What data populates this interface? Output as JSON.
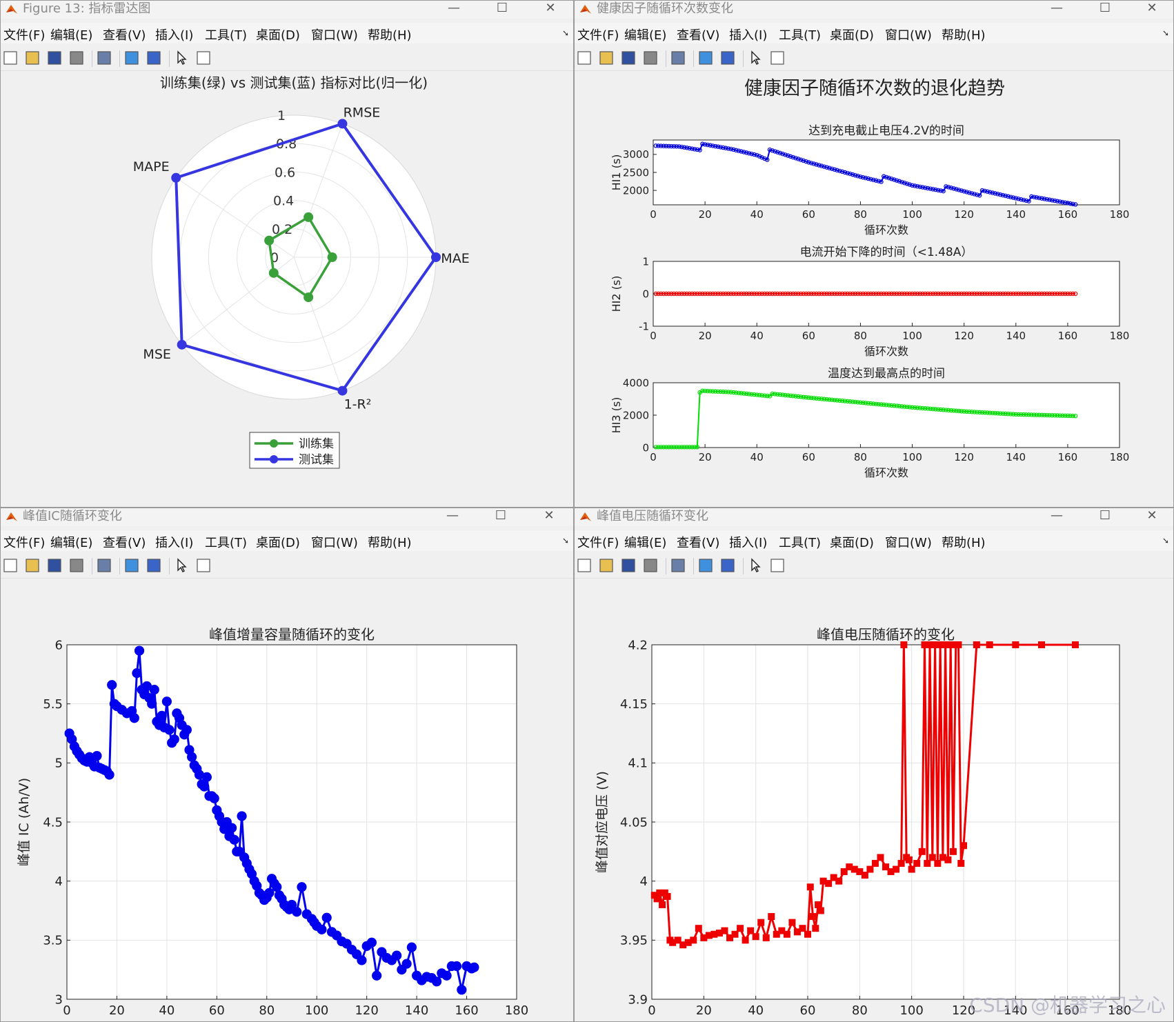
{
  "windows": {
    "radar": {
      "title": "Figure 13: 指标雷达图"
    },
    "health": {
      "title": "健康因子随循环次数变化"
    },
    "ic": {
      "title": "峰值IC随循环变化"
    },
    "voltage": {
      "title": "峰值电压随循环变化"
    }
  },
  "menu": [
    "文件(F)",
    "编辑(E)",
    "查看(V)",
    "插入(I)",
    "工具(T)",
    "桌面(D)",
    "窗口(W)",
    "帮助(H)"
  ],
  "watermark": "CSDN @机器学习之心",
  "chart_data": [
    {
      "type": "radar",
      "title": "训练集(绿) vs 测试集(蓝) 指标对比(归一化)",
      "axes": [
        "RMSE",
        "MAE",
        "1-R²",
        "MSE",
        "MAPE"
      ],
      "rticks": [
        "0",
        "0.2",
        "0.4",
        "0.6",
        "0.8",
        "1"
      ],
      "series": [
        {
          "name": "训练集",
          "color": "#3aa03a",
          "values": [
            0.3,
            0.27,
            0.3,
            0.18,
            0.21
          ]
        },
        {
          "name": "测试集",
          "color": "#3636e0",
          "values": [
            1.0,
            1.0,
            1.0,
            1.0,
            1.0
          ]
        }
      ],
      "legend_position": "bottom"
    },
    {
      "type": "line",
      "suptitle": "健康因子随循环次数的退化趋势",
      "subplots": [
        {
          "title": "达到充电截止电压4.2V的时间",
          "xlabel": "循环次数",
          "ylabel": "HI1 (s)",
          "xlim": [
            0,
            180
          ],
          "ylim": [
            1600,
            3400
          ],
          "xticks": [
            0,
            20,
            40,
            60,
            80,
            100,
            120,
            140,
            160,
            180
          ],
          "yticks": [
            2000,
            2500,
            3000
          ],
          "color": "#0000dd",
          "x": [
            1,
            10,
            18,
            19,
            30,
            40,
            44,
            45,
            60,
            80,
            88,
            89,
            100,
            112,
            113,
            126,
            127,
            145,
            146,
            163
          ],
          "y": [
            3240,
            3220,
            3120,
            3290,
            3150,
            2980,
            2850,
            3130,
            2780,
            2380,
            2240,
            2390,
            2140,
            1980,
            2110,
            1860,
            2000,
            1700,
            1830,
            1610
          ]
        },
        {
          "title": "电流开始下降的时间（<1.48A）",
          "xlabel": "循环次数",
          "ylabel": "HI2 (s)",
          "xlim": [
            0,
            180
          ],
          "ylim": [
            -1,
            1
          ],
          "xticks": [
            0,
            20,
            40,
            60,
            80,
            100,
            120,
            140,
            160,
            180
          ],
          "yticks": [
            -1,
            0,
            1
          ],
          "color": "#ee0000",
          "x": [
            1,
            163
          ],
          "y": [
            0,
            0
          ]
        },
        {
          "title": "温度达到最高点的时间",
          "xlabel": "循环次数",
          "ylabel": "HI3 (s)",
          "xlim": [
            0,
            180
          ],
          "ylim": [
            0,
            4000
          ],
          "xticks": [
            0,
            20,
            40,
            60,
            80,
            100,
            120,
            140,
            160,
            180
          ],
          "yticks": [
            0,
            2000,
            4000
          ],
          "color": "#00dd00",
          "x": [
            1,
            17,
            18,
            19,
            30,
            45,
            46,
            60,
            80,
            100,
            120,
            140,
            163
          ],
          "y": [
            30,
            30,
            3400,
            3500,
            3420,
            3170,
            3320,
            3080,
            2780,
            2480,
            2230,
            2050,
            1950
          ]
        }
      ]
    },
    {
      "type": "line",
      "title": "峰值增量容量随循环的变化",
      "xlabel": "循环次数",
      "ylabel": "峰值 IC (Ah/V)",
      "xlim": [
        0,
        180
      ],
      "ylim": [
        3,
        6
      ],
      "xticks": [
        0,
        20,
        40,
        60,
        80,
        100,
        120,
        140,
        160,
        180
      ],
      "yticks": [
        3,
        3.5,
        4,
        4.5,
        5,
        5.5,
        6
      ],
      "color": "#0000ee",
      "x": [
        1,
        2,
        3,
        4,
        5,
        6,
        7,
        8,
        9,
        10,
        11,
        12,
        13,
        14,
        15,
        16,
        17,
        18,
        19,
        20,
        22,
        24,
        26,
        27,
        28,
        29,
        30,
        31,
        32,
        33,
        34,
        35,
        36,
        37,
        38,
        39,
        40,
        41,
        42,
        43,
        44,
        45,
        46,
        47,
        48,
        49,
        50,
        51,
        52,
        53,
        54,
        55,
        56,
        57,
        58,
        59,
        60,
        61,
        62,
        63,
        64,
        65,
        66,
        67,
        68,
        69,
        70,
        71,
        72,
        73,
        74,
        75,
        76,
        77,
        78,
        79,
        80,
        81,
        82,
        83,
        84,
        85,
        86,
        87,
        88,
        89,
        90,
        92,
        94,
        96,
        98,
        99,
        100,
        102,
        104,
        106,
        108,
        110,
        112,
        114,
        116,
        118,
        120,
        122,
        124,
        126,
        128,
        130,
        132,
        134,
        136,
        138,
        140,
        142,
        144,
        146,
        148,
        150,
        152,
        154,
        156,
        158,
        160,
        162,
        163
      ],
      "y": [
        5.25,
        5.2,
        5.14,
        5.1,
        5.07,
        5.04,
        5.02,
        5.01,
        5.05,
        5.0,
        4.97,
        5.06,
        4.96,
        4.95,
        4.94,
        4.93,
        4.9,
        5.66,
        5.5,
        5.48,
        5.45,
        5.42,
        5.44,
        5.38,
        5.76,
        5.95,
        5.62,
        5.58,
        5.65,
        5.55,
        5.5,
        5.62,
        5.35,
        5.32,
        5.4,
        5.3,
        5.52,
        5.28,
        5.17,
        5.2,
        5.42,
        5.38,
        5.32,
        5.24,
        5.28,
        5.11,
        5.05,
        4.98,
        4.95,
        4.9,
        4.82,
        4.8,
        4.88,
        4.72,
        4.72,
        4.7,
        4.6,
        4.55,
        4.5,
        4.44,
        4.5,
        4.38,
        4.45,
        4.35,
        4.25,
        4.25,
        4.55,
        4.2,
        4.15,
        4.1,
        4.06,
        4.0,
        3.96,
        3.9,
        3.88,
        3.84,
        3.86,
        3.9,
        4.02,
        3.98,
        3.95,
        3.88,
        3.85,
        3.8,
        3.78,
        3.76,
        3.8,
        3.74,
        3.95,
        3.72,
        3.68,
        3.65,
        3.62,
        3.59,
        3.69,
        3.57,
        3.54,
        3.49,
        3.47,
        3.42,
        3.38,
        3.33,
        3.45,
        3.48,
        3.2,
        3.4,
        3.35,
        3.33,
        3.37,
        3.25,
        3.3,
        3.44,
        3.2,
        3.16,
        3.19,
        3.18,
        3.15,
        3.22,
        3.2,
        3.28,
        3.28,
        3.08,
        3.28,
        3.26,
        3.27
      ]
    },
    {
      "type": "line",
      "title": "峰值电压随循环的变化",
      "xlabel": "循环次数",
      "ylabel": "峰值对应电压 (V)",
      "xlim": [
        0,
        180
      ],
      "ylim": [
        3.9,
        4.2
      ],
      "xticks": [
        0,
        20,
        40,
        60,
        80,
        100,
        120,
        140,
        160,
        180
      ],
      "yticks": [
        3.9,
        3.95,
        4.0,
        4.05,
        4.1,
        4.15,
        4.2
      ],
      "color": "#ee0000",
      "x": [
        1,
        2,
        3,
        4,
        5,
        6,
        7,
        8,
        10,
        12,
        14,
        16,
        18,
        20,
        22,
        24,
        26,
        28,
        30,
        32,
        34,
        36,
        38,
        40,
        42,
        44,
        46,
        48,
        50,
        52,
        54,
        56,
        58,
        60,
        61,
        62,
        63,
        64,
        65,
        66,
        68,
        70,
        72,
        74,
        76,
        78,
        80,
        82,
        84,
        86,
        88,
        90,
        92,
        94,
        96,
        97,
        98,
        99,
        100,
        102,
        104,
        105,
        106,
        107,
        108,
        109,
        110,
        111,
        112,
        113,
        114,
        115,
        116,
        117,
        118,
        119,
        120,
        125,
        130,
        140,
        150,
        163
      ],
      "y": [
        3.988,
        3.985,
        3.99,
        3.98,
        3.99,
        3.987,
        3.95,
        3.948,
        3.95,
        3.946,
        3.948,
        3.95,
        3.96,
        3.952,
        3.954,
        3.955,
        3.956,
        3.958,
        3.952,
        3.955,
        3.96,
        3.95,
        3.958,
        3.953,
        3.965,
        3.952,
        3.97,
        3.955,
        3.958,
        3.955,
        3.965,
        3.957,
        3.96,
        3.955,
        3.995,
        3.97,
        3.96,
        3.98,
        3.975,
        4.0,
        3.998,
        4.003,
        4.0,
        4.008,
        4.012,
        4.01,
        4.008,
        4.005,
        4.01,
        4.015,
        4.02,
        4.012,
        4.008,
        4.01,
        4.015,
        4.2,
        4.02,
        4.018,
        4.01,
        4.015,
        4.025,
        4.2,
        4.015,
        4.2,
        4.02,
        4.2,
        4.015,
        4.2,
        4.02,
        4.2,
        4.018,
        4.2,
        4.025,
        4.2,
        4.2,
        4.015,
        4.03,
        4.2,
        4.2,
        4.2,
        4.2,
        4.2
      ]
    }
  ]
}
